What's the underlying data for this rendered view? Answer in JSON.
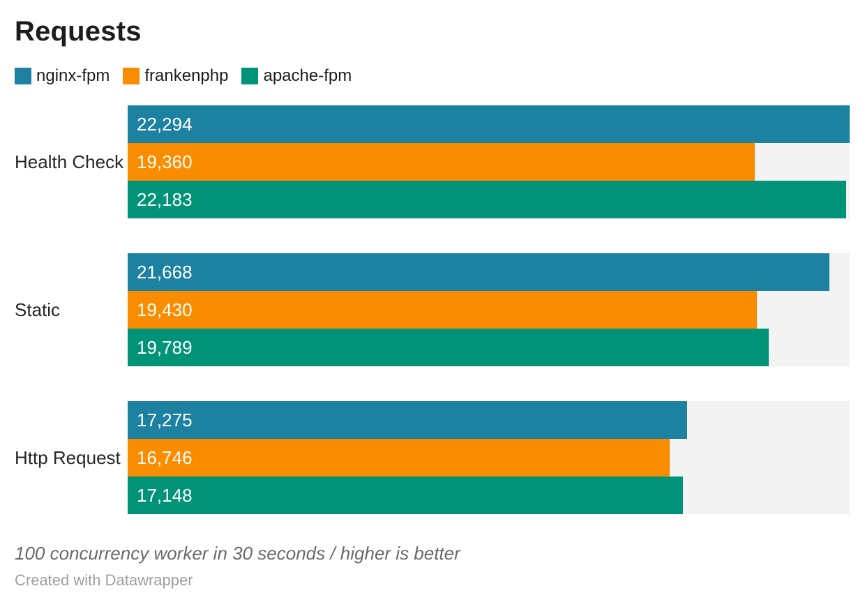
{
  "title": "Requests",
  "footer": {
    "note": "100 concurrency worker in 30 seconds / higher is better",
    "attribution": "Created with Datawrapper"
  },
  "colors": {
    "nginx_fpm": "#1d81a2",
    "frankenphp": "#fa8c00",
    "apache_fpm": "#009377",
    "bar_track": "#f3f3f4",
    "title_text": "#1d1d1d",
    "category_text": "#262626",
    "value_label_text": "#ffffff",
    "note_text": "#696969",
    "attribution_text": "#9e9e9e"
  },
  "chart_data": {
    "type": "bar",
    "orientation": "horizontal",
    "title": "Requests",
    "note": "100 concurrency worker in 30 seconds / higher is better",
    "categories": [
      "Health Check",
      "Static",
      "Http Request"
    ],
    "series": [
      {
        "name": "nginx-fpm",
        "color": "#1d81a2",
        "values": [
          22294,
          21668,
          17275
        ],
        "labels": [
          "22,294",
          "21,668",
          "17,275"
        ]
      },
      {
        "name": "frankenphp",
        "color": "#fa8c00",
        "values": [
          19360,
          19430,
          16746
        ],
        "labels": [
          "19,360",
          "19,430",
          "16,746"
        ]
      },
      {
        "name": "apache-fpm",
        "color": "#009377",
        "values": [
          22183,
          19789,
          17148
        ],
        "labels": [
          "22,183",
          "19,789",
          "17,148"
        ]
      }
    ],
    "xlim": [
      0,
      22294
    ],
    "xmax": 22294,
    "grid": false,
    "axis_ticks_visible": false,
    "value_labels_inside_bars": true,
    "legend_position": "top",
    "track_color": "#f3f3f4"
  }
}
